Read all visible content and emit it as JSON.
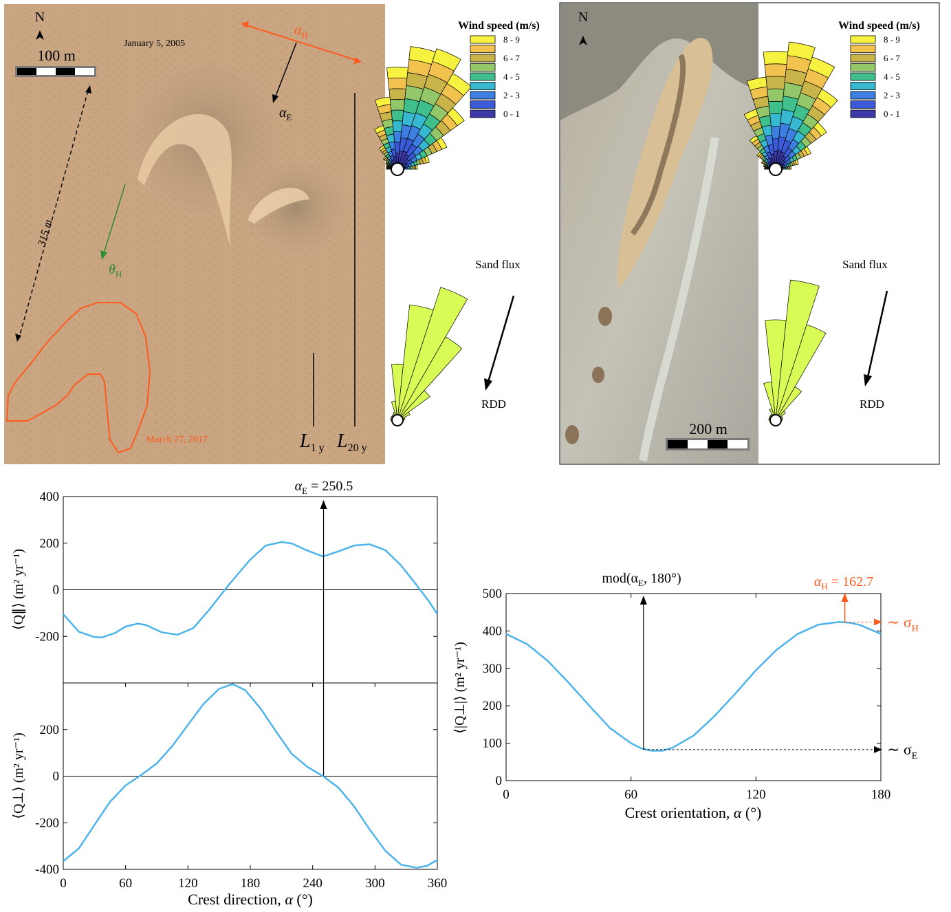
{
  "panel_a": {
    "north": "N",
    "scale_label": "100 m",
    "date_top": "January 5, 2005",
    "date_bottom": "March 27, 2017",
    "distance_label": "315 m",
    "alpha_H": "α",
    "alpha_H_sub": "H",
    "alpha_E": "α",
    "alpha_E_sub": "E",
    "theta_H": "θ",
    "theta_H_sub": "H",
    "L1_main": "L",
    "L1_sub": "1 y",
    "L20_main": "L",
    "L20_sub": "20 y",
    "colors": {
      "orange": "#ff5a1e",
      "green": "#2e8b2e",
      "sand": "#c9a582"
    }
  },
  "panel_b": {
    "north": "N",
    "scale_label": "200 m"
  },
  "rose_legend": {
    "title": "Wind speed (m/s)",
    "items": [
      "8 - 9",
      "",
      "6 - 7",
      "",
      "4 - 5",
      "",
      "2 - 3",
      "",
      "0 - 1"
    ],
    "colors": [
      "#f7f23f",
      "#f2c24f",
      "#c9b44a",
      "#93c76a",
      "#3fbf8c",
      "#36b8d0",
      "#3d7fe0",
      "#3a5ad8",
      "#3c3aa8"
    ]
  },
  "flux": {
    "label_top": "Sand flux",
    "label_bottom": "RDD",
    "color": "#d9fb55"
  },
  "chart_data": [
    {
      "type": "line",
      "xlabel": "",
      "ylabel": "⟨Q∥⟩ (m² yr⁻¹)",
      "xlim": [
        0,
        360
      ],
      "ylim": [
        -400,
        400
      ],
      "x_ticks": [
        "0",
        "60",
        "120",
        "180",
        "240",
        "300",
        "360"
      ],
      "y_ticks": [
        "400",
        "200",
        "0",
        "-200"
      ],
      "annotation": "α_E = 250.5",
      "annotation_main": "α",
      "annotation_sub": "E",
      "annotation_tail": " = 250.5",
      "color": "#4db4ea",
      "series": [
        {
          "x": [
            0,
            15,
            30,
            37,
            50,
            60,
            72,
            80,
            95,
            110,
            125,
            140,
            160,
            180,
            195,
            210,
            220,
            235,
            250,
            265,
            280,
            295,
            310,
            325,
            340,
            352,
            360
          ],
          "values": [
            -105,
            -180,
            -203,
            -205,
            -185,
            -158,
            -145,
            -152,
            -183,
            -193,
            -165,
            -88,
            25,
            130,
            190,
            205,
            199,
            168,
            143,
            165,
            190,
            195,
            170,
            105,
            20,
            -50,
            -105
          ]
        }
      ]
    },
    {
      "type": "line",
      "xlabel": "Crest direction, α (°)",
      "xlabel_main": "Crest direction, ",
      "xlabel_var": "α",
      "xlabel_unit": " (°)",
      "ylabel": "⟨Q⊥⟩ (m² yr⁻¹)",
      "xlim": [
        0,
        360
      ],
      "ylim": [
        -400,
        400
      ],
      "x_ticks": [
        "0",
        "60",
        "120",
        "180",
        "240",
        "300",
        "360"
      ],
      "y_ticks": [
        "200",
        "0",
        "-200",
        "-400"
      ],
      "color": "#4db4ea",
      "series": [
        {
          "x": [
            0,
            15,
            30,
            45,
            60,
            75,
            90,
            105,
            120,
            135,
            150,
            163,
            175,
            190,
            205,
            220,
            235,
            250,
            265,
            280,
            295,
            310,
            325,
            340,
            350,
            360
          ],
          "values": [
            -365,
            -310,
            -210,
            -110,
            -40,
            5,
            55,
            130,
            220,
            310,
            375,
            395,
            370,
            290,
            190,
            95,
            40,
            0,
            -50,
            -130,
            -230,
            -320,
            -380,
            -393,
            -385,
            -360
          ]
        }
      ]
    },
    {
      "type": "line",
      "xlabel": "Crest orientation, α (°)",
      "xlabel_main": "Crest orientation, ",
      "xlabel_var": "α",
      "xlabel_unit": " (°)",
      "ylabel": "⟨|Q⊥|⟩ (m² yr⁻¹)",
      "xlim": [
        0,
        180
      ],
      "ylim": [
        0,
        500
      ],
      "x_ticks": [
        "0",
        "60",
        "120",
        "180"
      ],
      "y_ticks": [
        "500",
        "400",
        "300",
        "200",
        "100",
        "0"
      ],
      "annotation_left": "mod(α_E, 180°)",
      "annotation_left_main": "mod(α",
      "annotation_left_sub": "E",
      "annotation_left_tail": ", 180°)",
      "annotation_right_main": "α",
      "annotation_right_sub": "H",
      "annotation_right_tail": " = 162.7",
      "sigma_H_main": "∼ σ",
      "sigma_H_sub": "H",
      "sigma_E_main": "∼ σ",
      "sigma_E_sub": "E",
      "marker_min_x": 70.5,
      "marker_min_y": 83,
      "marker_max_x": 162.7,
      "marker_max_y": 424,
      "color": "#4db4ea",
      "accent": "#ff5a1e",
      "series": [
        {
          "x": [
            0,
            10,
            20,
            30,
            40,
            50,
            60,
            65,
            70,
            75,
            80,
            90,
            100,
            110,
            120,
            130,
            140,
            150,
            160,
            165,
            170,
            180
          ],
          "values": [
            392,
            365,
            320,
            262,
            200,
            140,
            100,
            86,
            80,
            80,
            88,
            120,
            172,
            232,
            295,
            350,
            392,
            417,
            424,
            422,
            416,
            392
          ]
        }
      ]
    }
  ]
}
